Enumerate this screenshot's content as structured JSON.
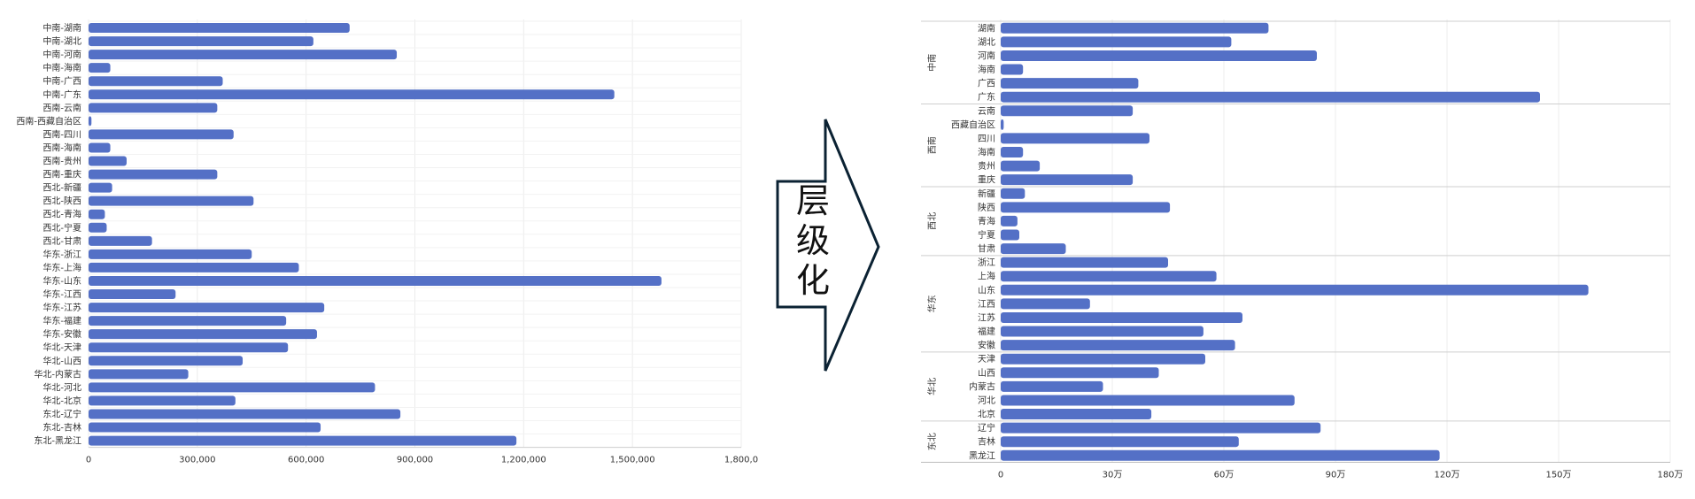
{
  "chart_data": [
    {
      "type": "bar",
      "orientation": "horizontal",
      "categories": [
        "中南-湖南",
        "中南-湖北",
        "中南-河南",
        "中南-海南",
        "中南-广西",
        "中南-广东",
        "西南-云南",
        "西南-西藏自治区",
        "西南-四川",
        "西南-海南",
        "西南-贵州",
        "西南-重庆",
        "西北-新疆",
        "西北-陕西",
        "西北-青海",
        "西北-宁夏",
        "西北-甘肃",
        "华东-浙江",
        "华东-上海",
        "华东-山东",
        "华东-江西",
        "华东-江苏",
        "华东-福建",
        "华东-安徽",
        "华北-天津",
        "华北-山西",
        "华北-内蒙古",
        "华北-河北",
        "华北-北京",
        "东北-辽宁",
        "东北-吉林",
        "东北-黑龙江"
      ],
      "values": [
        720000,
        620000,
        850000,
        60000,
        370000,
        1450000,
        355000,
        8000,
        400000,
        60000,
        105000,
        355000,
        65000,
        455000,
        45000,
        50000,
        175000,
        450000,
        580000,
        1580000,
        240000,
        650000,
        545000,
        630000,
        550000,
        425000,
        275000,
        790000,
        405000,
        860000,
        640000,
        1180000
      ],
      "xlim": [
        0,
        1800000
      ],
      "xticks": [
        "0",
        "300,000",
        "600,000",
        "900,000",
        "1,200,000",
        "1,500,000",
        "1,800,0"
      ],
      "grid": true,
      "bar_color": "#5470c6"
    },
    {
      "type": "bar",
      "orientation": "horizontal",
      "grouped_axis": true,
      "groups": [
        {
          "name": "中南",
          "categories": [
            "湖南",
            "湖北",
            "河南",
            "海南",
            "广西",
            "广东"
          ],
          "values": [
            720000,
            620000,
            850000,
            60000,
            370000,
            1450000
          ]
        },
        {
          "name": "西南",
          "categories": [
            "云南",
            "西藏自治区",
            "四川",
            "海南",
            "贵州",
            "重庆"
          ],
          "values": [
            355000,
            8000,
            400000,
            60000,
            105000,
            355000
          ]
        },
        {
          "name": "西北",
          "categories": [
            "新疆",
            "陕西",
            "青海",
            "宁夏",
            "甘肃"
          ],
          "values": [
            65000,
            455000,
            45000,
            50000,
            175000
          ]
        },
        {
          "name": "华东",
          "categories": [
            "浙江",
            "上海",
            "山东",
            "江西",
            "江苏",
            "福建",
            "安徽"
          ],
          "values": [
            450000,
            580000,
            1580000,
            240000,
            650000,
            545000,
            630000
          ]
        },
        {
          "name": "华北",
          "categories": [
            "天津",
            "山西",
            "内蒙古",
            "河北",
            "北京"
          ],
          "values": [
            550000,
            425000,
            275000,
            790000,
            405000
          ]
        },
        {
          "name": "东北",
          "categories": [
            "辽宁",
            "吉林",
            "黑龙江"
          ],
          "values": [
            860000,
            640000,
            1180000
          ]
        }
      ],
      "xlim": [
        0,
        1800000
      ],
      "xticks": [
        "0",
        "30万",
        "60万",
        "90万",
        "120万",
        "150万",
        "180万"
      ],
      "grid": true,
      "bar_color": "#5470c6"
    }
  ],
  "arrow": {
    "chars": [
      "层",
      "级",
      "化"
    ],
    "border_color": "#0b2233"
  }
}
